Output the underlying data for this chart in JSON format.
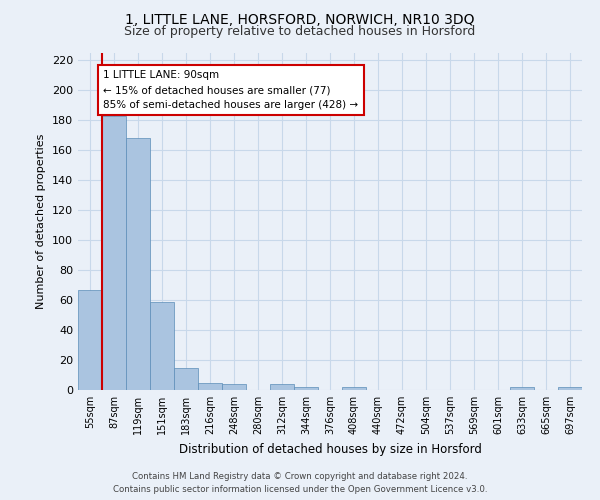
{
  "title": "1, LITTLE LANE, HORSFORD, NORWICH, NR10 3DQ",
  "subtitle": "Size of property relative to detached houses in Horsford",
  "xlabel": "Distribution of detached houses by size in Horsford",
  "ylabel": "Number of detached properties",
  "footer_line1": "Contains HM Land Registry data © Crown copyright and database right 2024.",
  "footer_line2": "Contains public sector information licensed under the Open Government Licence v3.0.",
  "bin_labels": [
    "55sqm",
    "87sqm",
    "119sqm",
    "151sqm",
    "183sqm",
    "216sqm",
    "248sqm",
    "280sqm",
    "312sqm",
    "344sqm",
    "376sqm",
    "408sqm",
    "440sqm",
    "472sqm",
    "504sqm",
    "537sqm",
    "569sqm",
    "601sqm",
    "633sqm",
    "665sqm",
    "697sqm"
  ],
  "bar_values": [
    67,
    183,
    168,
    59,
    15,
    5,
    4,
    0,
    4,
    2,
    0,
    2,
    0,
    0,
    0,
    0,
    0,
    0,
    2,
    0,
    2
  ],
  "bar_color": "#aac4e0",
  "bar_edge_color": "#5b8db8",
  "grid_color": "#c8d8ea",
  "red_line_color": "#cc0000",
  "annotation_text": "1 LITTLE LANE: 90sqm\n← 15% of detached houses are smaller (77)\n85% of semi-detached houses are larger (428) →",
  "annotation_box_color": "#ffffff",
  "annotation_box_edge": "#cc0000",
  "ylim": [
    0,
    225
  ],
  "yticks": [
    0,
    20,
    40,
    60,
    80,
    100,
    120,
    140,
    160,
    180,
    200,
    220
  ],
  "title_fontsize": 10,
  "subtitle_fontsize": 9,
  "background_color": "#eaf0f8"
}
